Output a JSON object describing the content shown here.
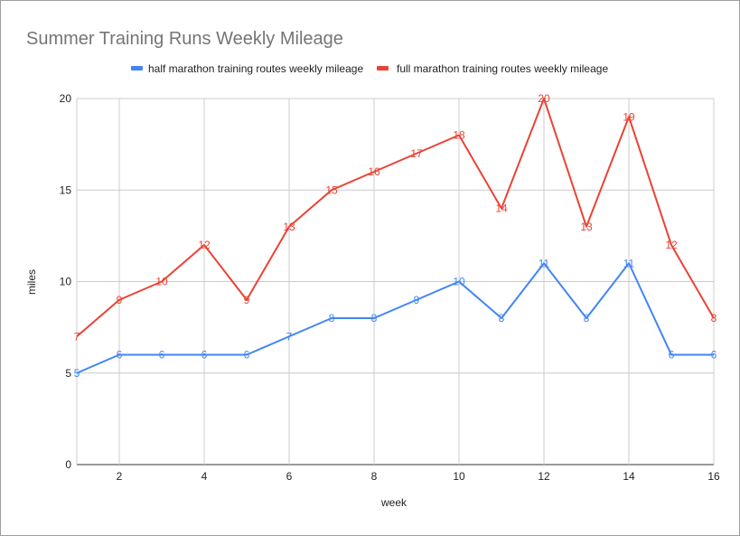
{
  "chart_data": {
    "type": "line",
    "title": "Summer Training Runs Weekly Mileage",
    "xlabel": "week",
    "ylabel": "miles",
    "xlim": [
      1,
      16
    ],
    "ylim": [
      0,
      20
    ],
    "xticks": [
      2,
      4,
      6,
      8,
      10,
      12,
      14,
      16
    ],
    "yticks": [
      0,
      5,
      10,
      15,
      20
    ],
    "grid": true,
    "legend": "top",
    "x": [
      1,
      2,
      3,
      4,
      5,
      6,
      7,
      8,
      9,
      10,
      11,
      12,
      13,
      14,
      15,
      16
    ],
    "series": [
      {
        "name": "half marathon training routes weekly mileage",
        "color": "#4285f4",
        "values": [
          5,
          6,
          6,
          6,
          6,
          7,
          8,
          8,
          9,
          10,
          8,
          11,
          8,
          11,
          6,
          6
        ]
      },
      {
        "name": "full marathon training routes weekly mileage",
        "color": "#ea4335",
        "values": [
          7,
          9,
          10,
          12,
          9,
          13,
          15,
          16,
          17,
          18,
          14,
          20,
          13,
          19,
          12,
          8
        ]
      }
    ]
  }
}
